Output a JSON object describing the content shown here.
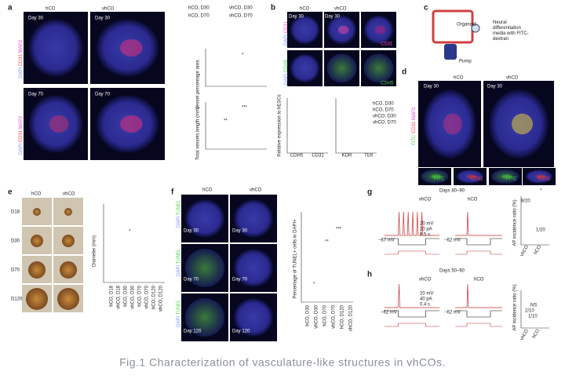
{
  "panels": {
    "a": {
      "label": "a",
      "columns": [
        "hCO",
        "vhCO"
      ],
      "days": [
        "Day 30",
        "Day 30",
        "Day 70",
        "Day 70"
      ],
      "stain": [
        "DAPI",
        "CD31",
        "MAP2"
      ],
      "legend": [
        "hCO, D30",
        "vhCO, D30",
        "hCO, D70",
        "vhCO, D70"
      ],
      "plot1_ylabel": "Vessel percentage area",
      "plot2_ylabel": "Total vessels length (mm)",
      "significance": [
        "*",
        "**",
        "***"
      ]
    },
    "b": {
      "label": "b",
      "columns": [
        "hCO",
        "vhCO"
      ],
      "days": [
        "Day 30",
        "Day 30"
      ],
      "stain1": [
        "DAPI",
        "CD31"
      ],
      "stain2": [
        "DAPI",
        "CDH5"
      ],
      "single": [
        "CD31",
        "CDH5"
      ],
      "ylabel": "Relative expression to hESCs",
      "genes": [
        "CDH5",
        "CD31",
        "KDR",
        "TEK"
      ],
      "legend": [
        "hCO, D30",
        "hCO, D70",
        "vhCO, D30",
        "vhCO, D70"
      ]
    },
    "c": {
      "label": "c",
      "organoid": "Organoid",
      "media": [
        "Neural",
        "differentiation",
        "media with FITC-",
        "dextran"
      ],
      "pump": "Pump"
    },
    "d": {
      "label": "d",
      "columns": [
        "hCO",
        "vhCO"
      ],
      "days": [
        "Day 30",
        "Day 30"
      ],
      "stain": [
        "FITC",
        "CD31",
        "MAP2"
      ],
      "small": [
        "FITC",
        "CD31",
        "FITC",
        "CD31"
      ]
    },
    "e": {
      "label": "e",
      "columns": [
        "hCO",
        "vhCO"
      ],
      "rows": [
        "D18",
        "D30",
        "D70",
        "D120"
      ],
      "ylabel": "Diameter (mm)",
      "categories": [
        "hCO, D18",
        "vhCO, D18",
        "hCO, D30",
        "vhCO, D30",
        "hCO, D70",
        "vhCO, D70",
        "hCO, D120",
        "vhCO, D120"
      ],
      "significance": "*"
    },
    "f": {
      "label": "f",
      "columns": [
        "hCO",
        "vhCO"
      ],
      "stain": [
        "DAPI",
        "TUNEL"
      ],
      "days": [
        "Day 30",
        "Day 30",
        "Day 70",
        "Day 70",
        "Day 120",
        "Day 120"
      ],
      "ylabel": "Percentage of TUNEL+ cells in DAPI+",
      "categories": [
        "hCO, D30",
        "vhCO, D30",
        "hCO, D70",
        "vhCO, D70",
        "hCO, D120",
        "vhCO, D120"
      ],
      "significance": [
        "*",
        "**",
        "***"
      ]
    },
    "g": {
      "label": "g",
      "title": "Days 80–90",
      "columns": [
        "vhCO",
        "hCO"
      ],
      "rest": [
        "−67 mV",
        "−62 mV"
      ],
      "scale": [
        "20 mV",
        "20 pA",
        "0.5 s"
      ],
      "ylabel": "AP incidence ratio (%)",
      "counts": [
        "8/20",
        "1/20"
      ],
      "categories": [
        "vhCO",
        "hCO"
      ],
      "significance": "*"
    },
    "h": {
      "label": "h",
      "title": "Days 50–60",
      "columns": [
        "vhCO",
        "hCO"
      ],
      "rest": [
        "−62 mV",
        "−62 mV"
      ],
      "scale": [
        "20 mV",
        "40 pA",
        "0.4 s"
      ],
      "ylabel": "AP incidence ratio (%)",
      "counts": [
        "2/10",
        "1/10"
      ],
      "categories": [
        "vhCO",
        "hCO"
      ],
      "significance": "NS"
    }
  },
  "caption": "Fig.1 Characterization of vasculature-like structures in vhCOs."
}
